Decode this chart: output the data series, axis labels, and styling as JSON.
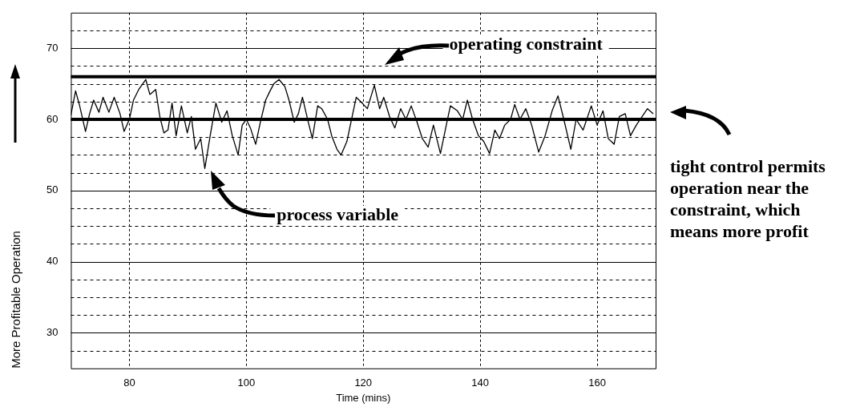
{
  "chart_data": {
    "type": "line",
    "xlabel": "Time (mins)",
    "ylabel": "More Profitable Operation",
    "xlim": [
      70,
      170
    ],
    "ylim": [
      25,
      75
    ],
    "xticks": [
      80,
      100,
      120,
      140,
      160
    ],
    "yticks": [
      {
        "value": 27.5,
        "label": null
      },
      30,
      {
        "value": 32.5,
        "label": null
      },
      {
        "value": 35,
        "label": null
      },
      {
        "value": 37.5,
        "label": null
      },
      40,
      {
        "value": 42.5,
        "label": null
      },
      {
        "value": 45,
        "label": null
      },
      {
        "value": 47.5,
        "label": null
      },
      50,
      {
        "value": 52.5,
        "label": null
      },
      {
        "value": 55,
        "label": null
      },
      {
        "value": 57.5,
        "label": null
      },
      60,
      {
        "value": 62.5,
        "label": null
      },
      {
        "value": 65,
        "label": null
      },
      {
        "value": 67.5,
        "label": null
      },
      70,
      {
        "value": 72.5,
        "label": null
      }
    ],
    "grid": true,
    "ref_lines": [
      {
        "axis": "y",
        "value": 66,
        "color": "#000000"
      },
      {
        "axis": "y",
        "value": 60,
        "color": "#000000"
      }
    ],
    "annotations": [
      "operating constraint",
      "process variable",
      "tight control permits operation near the constraint, which means more profit"
    ],
    "series": [
      {
        "color": "#000000",
        "x": [
          70,
          70.8,
          71.5,
          72.5,
          73.2,
          73.9,
          74.8,
          75.5,
          76.5,
          77.4,
          78.4,
          79.1,
          80,
          80.7,
          81.6,
          82.8,
          83.5,
          84.5,
          85.2,
          85.9,
          86.6,
          87.3,
          88,
          88.9,
          89.9,
          90.6,
          91.3,
          92.2,
          92.9,
          93.9,
          94.8,
          95.8,
          96.7,
          97.6,
          98.6,
          99.3,
          100,
          100.7,
          101.6,
          102.4,
          103.3,
          104,
          104.7,
          105.6,
          106.6,
          107.3,
          108.2,
          108.9,
          109.6,
          110.6,
          111.3,
          112.2,
          112.9,
          113.9,
          114.6,
          115.5,
          116.2,
          117.2,
          118.1,
          118.8,
          119.8,
          120.7,
          121.9,
          122.8,
          123.5,
          124.5,
          125.4,
          126.4,
          127.3,
          128.2,
          129.2,
          130.1,
          131.1,
          132,
          133.2,
          134.2,
          134.9,
          136.1,
          137,
          137.8,
          138.7,
          139.7,
          140.6,
          141.6,
          142.5,
          143.3,
          144.2,
          145.2,
          145.9,
          146.8,
          147.8,
          148.8,
          150,
          151.1,
          152.3,
          153.3,
          154.3,
          155.5,
          156.4,
          157.6,
          159,
          160,
          161,
          161.9,
          162.9,
          163.8,
          164.8,
          165.7,
          166.7,
          167.7,
          168.6,
          169.6
        ],
        "values": [
          60.6,
          64,
          61.9,
          58.3,
          60.8,
          62.7,
          61,
          63.1,
          61,
          63.1,
          60.8,
          58.3,
          60,
          62.7,
          64.2,
          65.6,
          63.5,
          64.2,
          60.4,
          58.1,
          58.5,
          62.3,
          57.7,
          61.9,
          58.1,
          60.4,
          55.8,
          57.3,
          53.1,
          58.1,
          62.3,
          59.6,
          61.2,
          57.7,
          55,
          59.2,
          60,
          58.8,
          56.5,
          59.6,
          62.7,
          63.9,
          65,
          65.6,
          64.6,
          62.7,
          59.6,
          60.8,
          63.1,
          59.6,
          57.3,
          61.9,
          61.5,
          60,
          57.7,
          55.8,
          55,
          56.9,
          60.4,
          63.1,
          62.3,
          61.5,
          64.8,
          61.5,
          63.1,
          60.4,
          58.8,
          61.5,
          60,
          61.9,
          59.6,
          57.3,
          56.1,
          59.2,
          55.2,
          59.2,
          61.9,
          61.2,
          60,
          62.7,
          60,
          57.7,
          56.9,
          55.2,
          58.5,
          57.3,
          59.2,
          60,
          62.1,
          60,
          61.5,
          59.2,
          55.4,
          57.7,
          61.2,
          63.3,
          60,
          55.8,
          60,
          58.5,
          61.9,
          59.2,
          61.2,
          57.3,
          56.5,
          60.4,
          60.8,
          57.7,
          59.2,
          60.4,
          61.5,
          60.8
        ]
      }
    ]
  }
}
